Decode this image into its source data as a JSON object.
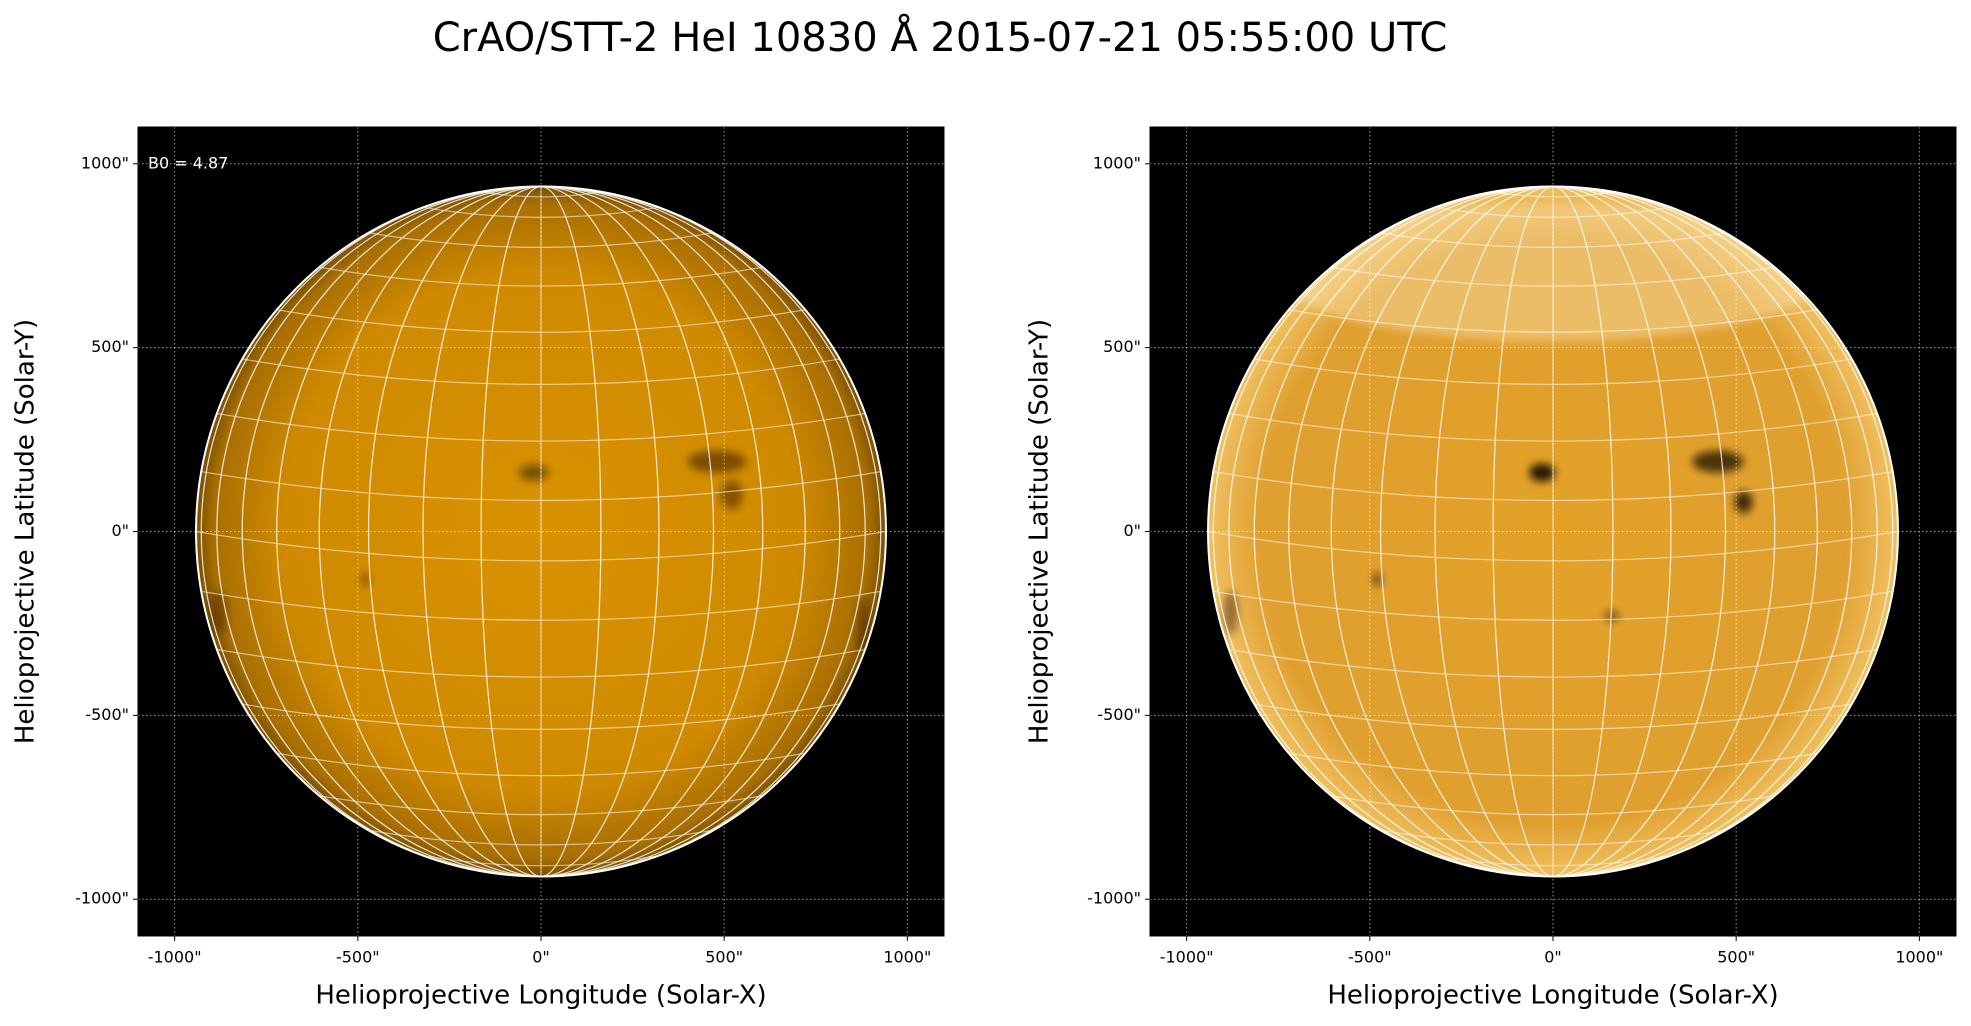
{
  "title": "CrAO/STT-2 HeI 10830 Å 2015-07-21 05:55:00 UTC",
  "chart_data": [
    {
      "type": "image",
      "xlabel": "Helioprojective Longitude (Solar-X)",
      "ylabel": "Helioprojective Latitude (Solar-Y)",
      "annotation": "B0 = 4.87",
      "xlim": [
        -1100,
        1100
      ],
      "ylim": [
        -1100,
        1100
      ],
      "xticks": [
        {
          "value": -1000,
          "label": "-1000\""
        },
        {
          "value": -500,
          "label": "-500\""
        },
        {
          "value": 0,
          "label": "0\""
        },
        {
          "value": 500,
          "label": "500\""
        },
        {
          "value": 1000,
          "label": "1000\""
        }
      ],
      "yticks": [
        {
          "value": -1000,
          "label": "-1000\""
        },
        {
          "value": -500,
          "label": "-500\""
        },
        {
          "value": 0,
          "label": "0\""
        },
        {
          "value": 500,
          "label": "500\""
        },
        {
          "value": 1000,
          "label": "1000\""
        }
      ],
      "grid": true
    },
    {
      "type": "image",
      "xlabel": "Helioprojective Longitude (Solar-X)",
      "ylabel": "Helioprojective Latitude (Solar-Y)",
      "xlim": [
        -1100,
        1100
      ],
      "ylim": [
        -1100,
        1100
      ],
      "xticks": [
        {
          "value": -1000,
          "label": "-1000\""
        },
        {
          "value": -500,
          "label": "-500\""
        },
        {
          "value": 0,
          "label": "0\""
        },
        {
          "value": 500,
          "label": "500\""
        },
        {
          "value": 1000,
          "label": "1000\""
        }
      ],
      "yticks": [
        {
          "value": -1000,
          "label": "-1000\""
        },
        {
          "value": -500,
          "label": "-500\""
        },
        {
          "value": 0,
          "label": "0\""
        },
        {
          "value": 500,
          "label": "500\""
        },
        {
          "value": 1000,
          "label": "1000\""
        }
      ],
      "grid": true
    }
  ]
}
